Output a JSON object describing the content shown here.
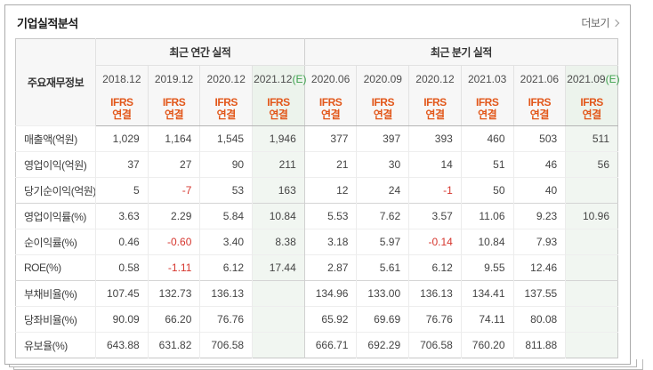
{
  "panel": {
    "title": "기업실적분석",
    "more_label": "더보기"
  },
  "colors": {
    "accent_orange": "#e2571a",
    "estimate_green": "#3da14d",
    "negative_red": "#d6362e",
    "estimate_column_bg": "#f1f6f1",
    "header_bg": "#f7f7f7"
  },
  "table": {
    "corner_label": "주요재무정보",
    "groups": [
      {
        "label": "최근 연간 실적"
      },
      {
        "label": "최근 분기 실적"
      }
    ],
    "ifrs_line1": "IFRS",
    "ifrs_line2": "연결",
    "columns": [
      {
        "period": "2018.12",
        "estimate_suffix": ""
      },
      {
        "period": "2019.12",
        "estimate_suffix": ""
      },
      {
        "period": "2020.12",
        "estimate_suffix": ""
      },
      {
        "period": "2021.12",
        "estimate_suffix": "(E)"
      },
      {
        "period": "2020.06",
        "estimate_suffix": ""
      },
      {
        "period": "2020.09",
        "estimate_suffix": ""
      },
      {
        "period": "2020.12",
        "estimate_suffix": ""
      },
      {
        "period": "2021.03",
        "estimate_suffix": ""
      },
      {
        "period": "2021.06",
        "estimate_suffix": ""
      },
      {
        "period": "2021.09",
        "estimate_suffix": "(E)"
      }
    ],
    "rows": [
      {
        "label": "매출액(억원)",
        "values": [
          "1,029",
          "1,164",
          "1,545",
          "1,946",
          "377",
          "397",
          "393",
          "460",
          "503",
          "511"
        ]
      },
      {
        "label": "영업이익(억원)",
        "values": [
          "37",
          "27",
          "90",
          "211",
          "21",
          "30",
          "14",
          "51",
          "46",
          "56"
        ]
      },
      {
        "label": "당기순이익(억원)",
        "values": [
          "5",
          "-7",
          "53",
          "163",
          "12",
          "24",
          "-1",
          "50",
          "40",
          ""
        ]
      },
      {
        "label": "영업이익률(%)",
        "values": [
          "3.63",
          "2.29",
          "5.84",
          "10.84",
          "5.53",
          "7.62",
          "3.57",
          "11.06",
          "9.23",
          "10.96"
        ]
      },
      {
        "label": "순이익률(%)",
        "values": [
          "0.46",
          "-0.60",
          "3.40",
          "8.38",
          "3.18",
          "5.97",
          "-0.14",
          "10.84",
          "7.93",
          ""
        ]
      },
      {
        "label": "ROE(%)",
        "values": [
          "0.58",
          "-1.11",
          "6.12",
          "17.44",
          "2.87",
          "5.61",
          "6.12",
          "9.55",
          "12.46",
          ""
        ]
      },
      {
        "label": "부채비율(%)",
        "values": [
          "107.45",
          "132.73",
          "136.13",
          "",
          "134.96",
          "133.00",
          "136.13",
          "134.41",
          "137.55",
          ""
        ]
      },
      {
        "label": "당좌비율(%)",
        "values": [
          "90.09",
          "66.20",
          "76.76",
          "",
          "65.92",
          "69.69",
          "76.76",
          "74.11",
          "80.08",
          ""
        ]
      },
      {
        "label": "유보율(%)",
        "values": [
          "643.88",
          "631.82",
          "706.58",
          "",
          "666.71",
          "692.29",
          "706.58",
          "760.20",
          "811.88",
          ""
        ]
      }
    ]
  }
}
